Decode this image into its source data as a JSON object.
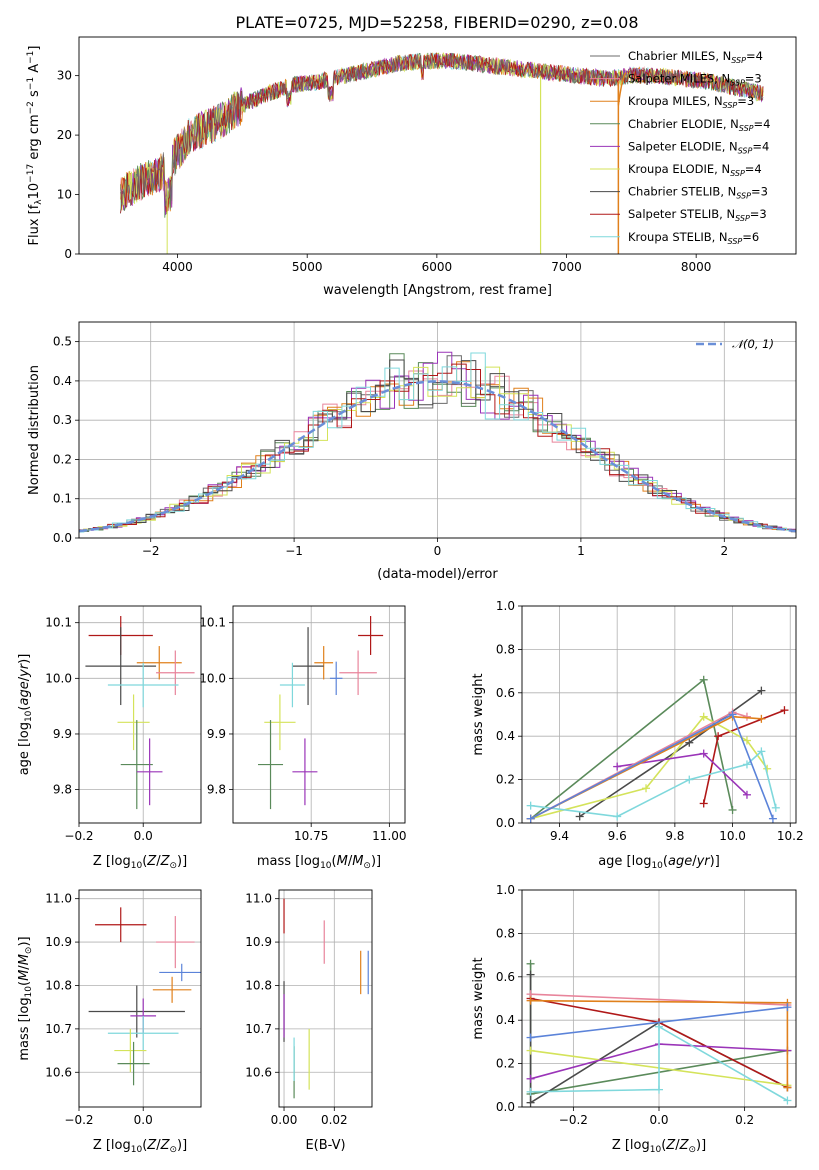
{
  "figure": {
    "title": "PLATE=0725, MJD=52258, FIBERID=0290, z=0.08"
  },
  "colors": {
    "Chabrier MILES": "#6b6b6b",
    "Salpeter MILES": "#e8849b",
    "Kroupa MILES": "#e0801c",
    "Chabrier ELODIE": "#5a8a5a",
    "Salpeter ELODIE": "#9a34b8",
    "Kroupa ELODIE": "#d4e35a",
    "Chabrier STELIB": "#4a4a4a",
    "Salpeter STELIB": "#b01818",
    "Kroupa STELIB": "#7fd8dc",
    "normal": "#6a8fd8",
    "extra_blue": "#5b83d9"
  },
  "chart_data": [
    {
      "id": "spectrum",
      "type": "line",
      "xlabel": "wavelength [Angstrom, rest frame]",
      "ylabel": "Flux [f",
      "xlim": [
        3240,
        8770
      ],
      "ylim": [
        0,
        36.5
      ],
      "xticks": [
        4000,
        5000,
        6000,
        7000,
        8000
      ],
      "yticks": [
        0,
        10,
        20,
        30
      ],
      "legend_placement": "right",
      "legend": [
        {
          "series": "Chabrier MILES",
          "nssp": 4
        },
        {
          "series": "Salpeter MILES",
          "nssp": 3
        },
        {
          "series": "Kroupa MILES",
          "nssp": 3
        },
        {
          "series": "Chabrier ELODIE",
          "nssp": 4
        },
        {
          "series": "Salpeter ELODIE",
          "nssp": 4
        },
        {
          "series": "Kroupa ELODIE",
          "nssp": 4
        },
        {
          "series": "Chabrier STELIB",
          "nssp": 3
        },
        {
          "series": "Salpeter STELIB",
          "nssp": 3
        },
        {
          "series": "Kroupa STELIB",
          "nssp": 6
        }
      ],
      "continuum_points": [
        [
          3560,
          10
        ],
        [
          3700,
          12
        ],
        [
          3800,
          13
        ],
        [
          3900,
          14
        ],
        [
          4000,
          17
        ],
        [
          4100,
          20
        ],
        [
          4300,
          22
        ],
        [
          4500,
          25
        ],
        [
          4700,
          27
        ],
        [
          4900,
          28.5
        ],
        [
          5100,
          29
        ],
        [
          5300,
          30
        ],
        [
          5500,
          31
        ],
        [
          5700,
          32
        ],
        [
          5900,
          32.5
        ],
        [
          6100,
          32.5
        ],
        [
          6300,
          32
        ],
        [
          6500,
          31.5
        ],
        [
          6700,
          31
        ],
        [
          6900,
          30.5
        ],
        [
          7100,
          30
        ],
        [
          7300,
          29.5
        ],
        [
          7500,
          30
        ],
        [
          7700,
          30
        ],
        [
          7900,
          29.5
        ],
        [
          8100,
          29
        ],
        [
          8300,
          28
        ],
        [
          8500,
          27
        ],
        [
          8520,
          27
        ]
      ]
    },
    {
      "id": "residuals",
      "type": "line",
      "xlabel": "(data-model)/error",
      "ylabel": "Normed distribution",
      "xlim": [
        -2.5,
        2.5
      ],
      "ylim": [
        0,
        0.55
      ],
      "xticks": [
        -2,
        -1,
        0,
        1,
        2
      ],
      "xtick_labels": [
        "−2",
        "−1",
        "0",
        "1",
        "2"
      ],
      "yticks": [
        0.0,
        0.1,
        0.2,
        0.3,
        0.4,
        0.5
      ],
      "ytick_labels": [
        "0.0",
        "0.1",
        "0.2",
        "0.3",
        "0.4",
        "0.5"
      ],
      "grid": true,
      "legend_placement": "top-right",
      "legend": [
        "𝒩(0, 1)"
      ]
    },
    {
      "id": "age-vs-Z",
      "type": "scatter",
      "xlabel": "Z [log",
      "ylabel": "age  [log",
      "xlim": [
        -0.2,
        0.18
      ],
      "ylim": [
        9.74,
        10.13
      ],
      "xticks": [
        -0.2,
        0.0
      ],
      "xtick_labels": [
        "−0.2",
        "0.0"
      ],
      "yticks": [
        9.8,
        9.9,
        10.0,
        10.1
      ],
      "yticks_labels": [
        "9.8",
        "9.9",
        "10.0",
        "10.1"
      ],
      "grid": true,
      "points": [
        {
          "series": "Salpeter STELIB",
          "x": -0.07,
          "xerr": 0.1,
          "y": 10.077,
          "yerr": 0.035
        },
        {
          "series": "Kroupa MILES",
          "x": 0.05,
          "xerr": 0.07,
          "y": 10.028,
          "yerr": 0.03
        },
        {
          "series": "Chabrier STELIB",
          "x": -0.07,
          "xerr": 0.11,
          "y": 10.022,
          "yerr": 0.07
        },
        {
          "series": "Salpeter MILES",
          "x": 0.1,
          "xerr": 0.06,
          "y": 10.01,
          "yerr": 0.04
        },
        {
          "series": "Kroupa STELIB",
          "x": 0.0,
          "xerr": 0.11,
          "y": 9.988,
          "yerr": 0.04
        },
        {
          "series": "Kroupa ELODIE",
          "x": -0.03,
          "xerr": 0.05,
          "y": 9.921,
          "yerr": 0.05
        },
        {
          "series": "Chabrier ELODIE",
          "x": -0.02,
          "xerr": 0.05,
          "y": 9.845,
          "yerr": 0.08
        },
        {
          "series": "Salpeter ELODIE",
          "x": 0.02,
          "xerr": 0.04,
          "y": 9.832,
          "yerr": 0.06
        }
      ]
    },
    {
      "id": "age-vs-mass",
      "type": "scatter",
      "xlabel": "mass [log",
      "xlim": [
        10.5,
        11.05
      ],
      "ylim": [
        9.74,
        10.13
      ],
      "xticks": [
        10.75,
        11.0
      ],
      "xtick_labels": [
        "10.75",
        "11.00"
      ],
      "yticks": [
        9.8,
        9.9,
        10.0,
        10.1
      ],
      "yticks_labels": [
        "9.8",
        "9.9",
        "10.0",
        "10.1"
      ],
      "grid": true,
      "points": [
        {
          "series": "Salpeter STELIB",
          "x": 10.94,
          "xerr": 0.04,
          "y": 10.077,
          "yerr": 0.035
        },
        {
          "series": "Kroupa MILES",
          "x": 10.79,
          "xerr": 0.03,
          "y": 10.028,
          "yerr": 0.03
        },
        {
          "series": "Chabrier STELIB",
          "x": 10.74,
          "xerr": 0.05,
          "y": 10.022,
          "yerr": 0.07
        },
        {
          "series": "Salpeter MILES",
          "x": 10.9,
          "xerr": 0.06,
          "y": 10.01,
          "yerr": 0.04
        },
        {
          "series": "Kroupa STELIB",
          "x": 10.69,
          "xerr": 0.04,
          "y": 9.988,
          "yerr": 0.04
        },
        {
          "series": "Kroupa ELODIE",
          "x": 10.65,
          "xerr": 0.05,
          "y": 9.921,
          "yerr": 0.05
        },
        {
          "series": "Chabrier ELODIE",
          "x": 10.62,
          "xerr": 0.04,
          "y": 9.845,
          "yerr": 0.08
        },
        {
          "series": "Salpeter ELODIE",
          "x": 10.73,
          "xerr": 0.04,
          "y": 9.832,
          "yerr": 0.06
        },
        {
          "series": "extra_blue",
          "x": 10.83,
          "xerr": 0.02,
          "y": 10.0,
          "yerr": 0.03
        }
      ]
    },
    {
      "id": "mass-weight-vs-age",
      "type": "line",
      "xlabel": "age  [log",
      "ylabel": "mass weight",
      "xlim": [
        9.27,
        10.22
      ],
      "ylim": [
        0,
        1.0
      ],
      "xticks": [
        9.4,
        9.6,
        9.8,
        10.0,
        10.2
      ],
      "xtick_labels": [
        "9.4",
        "9.6",
        "9.8",
        "10.0",
        "10.2"
      ],
      "yticks": [
        0.0,
        0.2,
        0.4,
        0.6,
        0.8,
        1.0
      ],
      "ytick_labels": [
        "0.0",
        "0.2",
        "0.4",
        "0.6",
        "0.8",
        "1.0"
      ],
      "grid": true,
      "series": [
        {
          "series": "Chabrier ELODIE",
          "x": [
            9.3,
            9.9,
            10.0
          ],
          "y": [
            0.02,
            0.66,
            0.06
          ]
        },
        {
          "series": "Chabrier STELIB",
          "x": [
            9.47,
            9.85,
            10.1
          ],
          "y": [
            0.03,
            0.37,
            0.61
          ]
        },
        {
          "series": "Salpeter STELIB",
          "x": [
            9.9,
            9.95,
            10.18
          ],
          "y": [
            0.09,
            0.4,
            0.52
          ]
        },
        {
          "series": "Kroupa ELODIE",
          "x": [
            9.3,
            9.7,
            9.9,
            10.05,
            10.12
          ],
          "y": [
            0.02,
            0.16,
            0.49,
            0.38,
            0.25
          ]
        },
        {
          "series": "Salpeter ELODIE",
          "x": [
            9.6,
            9.9,
            10.05
          ],
          "y": [
            0.26,
            0.32,
            0.13
          ]
        },
        {
          "series": "Kroupa STELIB",
          "x": [
            9.3,
            9.6,
            9.85,
            10.05,
            10.1,
            10.15
          ],
          "y": [
            0.08,
            0.03,
            0.2,
            0.27,
            0.33,
            0.07
          ]
        },
        {
          "series": "Salpeter MILES",
          "x": [
            9.3,
            10.0,
            10.05
          ],
          "y": [
            0.02,
            0.51,
            0.49
          ]
        },
        {
          "series": "Kroupa MILES",
          "x": [
            9.3,
            10.0,
            10.1
          ],
          "y": [
            0.02,
            0.49,
            0.48
          ]
        },
        {
          "series": "extra_blue",
          "x": [
            9.3,
            10.0,
            10.14
          ],
          "y": [
            0.02,
            0.5,
            0.02
          ]
        }
      ]
    },
    {
      "id": "mass-vs-Z",
      "type": "scatter",
      "xlabel": "Z [log",
      "ylabel": "mass [log",
      "xlim": [
        -0.2,
        0.18
      ],
      "ylim": [
        10.52,
        11.02
      ],
      "xticks": [
        -0.2,
        0.0
      ],
      "xtick_labels": [
        "−0.2",
        "0.0"
      ],
      "yticks": [
        10.6,
        10.7,
        10.8,
        10.9,
        11.0
      ],
      "yticks_labels": [
        "10.6",
        "10.7",
        "10.8",
        "10.9",
        "11.0"
      ],
      "grid": true,
      "points": [
        {
          "series": "Salpeter STELIB",
          "x": -0.07,
          "xerr": 0.08,
          "y": 10.94,
          "yerr": 0.04
        },
        {
          "series": "Salpeter MILES",
          "x": 0.1,
          "xerr": 0.06,
          "y": 10.9,
          "yerr": 0.06
        },
        {
          "series": "extra_blue",
          "x": 0.12,
          "xerr": 0.07,
          "y": 10.83,
          "yerr": 0.02
        },
        {
          "series": "Kroupa MILES",
          "x": 0.09,
          "xerr": 0.06,
          "y": 10.79,
          "yerr": 0.03
        },
        {
          "series": "Chabrier STELIB",
          "x": -0.02,
          "xerr": 0.15,
          "y": 10.74,
          "yerr": 0.06
        },
        {
          "series": "Salpeter ELODIE",
          "x": 0.0,
          "xerr": 0.04,
          "y": 10.73,
          "yerr": 0.04
        },
        {
          "series": "Kroupa STELIB",
          "x": 0.0,
          "xerr": 0.11,
          "y": 10.69,
          "yerr": 0.04
        },
        {
          "series": "Kroupa ELODIE",
          "x": -0.04,
          "xerr": 0.05,
          "y": 10.65,
          "yerr": 0.05
        },
        {
          "series": "Chabrier ELODIE",
          "x": -0.03,
          "xerr": 0.05,
          "y": 10.62,
          "yerr": 0.05
        }
      ]
    },
    {
      "id": "mass-vs-ebv",
      "type": "scatter",
      "xlabel": "E(B-V)",
      "xlim": [
        -0.002,
        0.035
      ],
      "ylim": [
        10.52,
        11.02
      ],
      "xticks": [
        0.0,
        0.02
      ],
      "xtick_labels": [
        "0.00",
        "0.02"
      ],
      "yticks": [
        10.6,
        10.7,
        10.8,
        10.9,
        11.0
      ],
      "yticks_labels": [
        "10.6",
        "10.7",
        "10.8",
        "10.9",
        "11.0"
      ],
      "grid": true,
      "points": [
        {
          "series": "Salpeter STELIB",
          "x": 0.0,
          "y": 10.96,
          "yerr": 0.04
        },
        {
          "series": "Salpeter MILES",
          "x": 0.016,
          "y": 10.9,
          "yerr": 0.05
        },
        {
          "series": "extra_blue",
          "x": 0.0335,
          "y": 10.83,
          "yerr": 0.05
        },
        {
          "series": "Kroupa MILES",
          "x": 0.0305,
          "y": 10.83,
          "yerr": 0.05
        },
        {
          "series": "Chabrier STELIB",
          "x": 0.0,
          "y": 10.74,
          "yerr": 0.07
        },
        {
          "series": "Salpeter ELODIE",
          "x": 0.0,
          "y": 10.73,
          "yerr": 0.05
        },
        {
          "series": "Kroupa ELODIE",
          "x": 0.01,
          "y": 10.63,
          "yerr": 0.07
        },
        {
          "series": "Chabrier ELODIE",
          "x": 0.004,
          "y": 10.6,
          "yerr": 0.06
        },
        {
          "series": "Kroupa STELIB",
          "x": 0.004,
          "y": 10.63,
          "yerr": 0.05
        }
      ]
    },
    {
      "id": "mass-weight-vs-Z",
      "type": "line",
      "xlabel": "Z [log",
      "ylabel": "mass weight",
      "xlim": [
        -0.32,
        0.32
      ],
      "ylim": [
        0,
        1.0
      ],
      "xticks": [
        -0.2,
        0.0,
        0.2
      ],
      "xtick_labels": [
        "−0.2",
        "0.0",
        "0.2"
      ],
      "yticks": [
        0.0,
        0.2,
        0.4,
        0.6,
        0.8,
        1.0
      ],
      "ytick_labels": [
        "0.0",
        "0.2",
        "0.4",
        "0.6",
        "0.8",
        "1.0"
      ],
      "grid": true,
      "series": [
        {
          "series": "Chabrier ELODIE",
          "x": [
            -0.3,
            -0.3,
            0.3
          ],
          "y": [
            0.66,
            0.06,
            0.26
          ]
        },
        {
          "series": "Chabrier STELIB",
          "x": [
            -0.3,
            -0.3,
            0.0,
            0.3
          ],
          "y": [
            0.61,
            0.02,
            0.39,
            0.09
          ]
        },
        {
          "series": "Salpeter STELIB",
          "x": [
            -0.3,
            0.0,
            0.3
          ],
          "y": [
            0.5,
            0.39,
            0.09
          ]
        },
        {
          "series": "Kroupa ELODIE",
          "x": [
            -0.3,
            0.3
          ],
          "y": [
            0.26,
            0.1
          ]
        },
        {
          "series": "Salpeter ELODIE",
          "x": [
            -0.3,
            0.0,
            0.3
          ],
          "y": [
            0.13,
            0.29,
            0.26
          ]
        },
        {
          "series": "Kroupa STELIB",
          "x": [
            -0.3,
            0.0,
            0.0,
            0.3
          ],
          "y": [
            0.07,
            0.08,
            0.37,
            0.03
          ]
        },
        {
          "series": "Salpeter MILES",
          "x": [
            -0.3,
            0.3
          ],
          "y": [
            0.52,
            0.47
          ]
        },
        {
          "series": "Kroupa MILES",
          "x": [
            -0.3,
            0.3,
            0.3
          ],
          "y": [
            0.49,
            0.48,
            0.09
          ]
        },
        {
          "series": "extra_blue",
          "x": [
            -0.3,
            0.3
          ],
          "y": [
            0.32,
            0.46
          ]
        }
      ]
    }
  ]
}
